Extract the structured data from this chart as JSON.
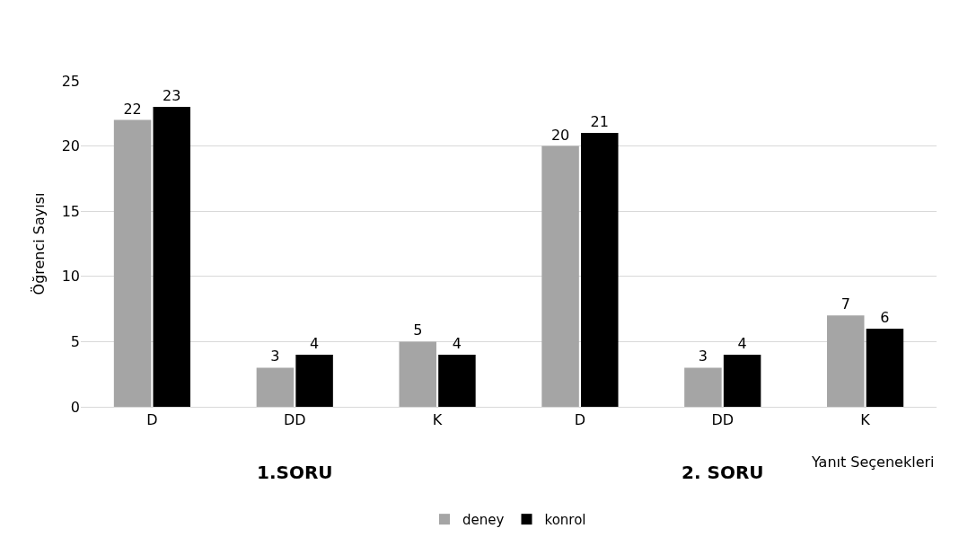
{
  "chart_data": {
    "type": "bar",
    "ylabel": "Öğrenci Sayısı",
    "xlabel": "Yanıt Seçenekleri",
    "categories": [
      "D",
      "DD",
      "K",
      "D",
      "DD",
      "K"
    ],
    "series": [
      {
        "name": "deney",
        "color": "#a5a5a5",
        "values": [
          22,
          3,
          5,
          20,
          3,
          7
        ]
      },
      {
        "name": "konrol",
        "color": "#000000",
        "values": [
          23,
          4,
          4,
          21,
          4,
          6
        ]
      }
    ],
    "ylim": [
      0,
      25
    ],
    "yticks": [
      0,
      5,
      10,
      15,
      20,
      25
    ],
    "grid": "y",
    "legend": "bottom",
    "data_labels": true,
    "annotations": [
      "1.SORU",
      "2. SORU"
    ]
  }
}
